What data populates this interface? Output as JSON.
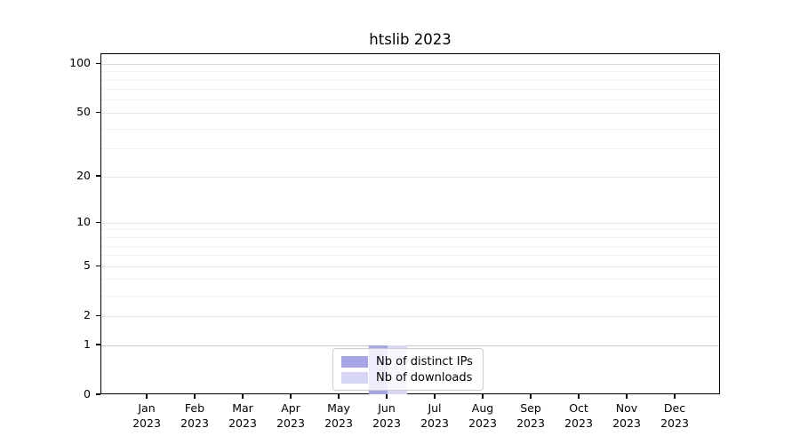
{
  "chart_data": {
    "type": "bar",
    "title": "htslib 2023",
    "categories": [
      "Jan 2023",
      "Feb 2023",
      "Mar 2023",
      "Apr 2023",
      "May 2023",
      "Jun 2023",
      "Jul 2023",
      "Aug 2023",
      "Sep 2023",
      "Oct 2023",
      "Nov 2023",
      "Dec 2023"
    ],
    "series": [
      {
        "name": "Nb of distinct IPs",
        "color": "#a5a5e8",
        "values": [
          0,
          0,
          0,
          0,
          0,
          1,
          0,
          0,
          0,
          0,
          0,
          0
        ]
      },
      {
        "name": "Nb of downloads",
        "color": "#d7d7f5",
        "values": [
          0,
          0,
          0,
          0,
          0,
          1,
          0,
          0,
          0,
          0,
          0,
          0
        ]
      }
    ],
    "xlabel": "",
    "ylabel": "",
    "yticks": [
      0,
      1,
      2,
      5,
      10,
      20,
      50,
      100
    ],
    "minor_yticks": [
      3,
      4,
      6,
      7,
      8,
      9,
      30,
      40,
      60,
      70,
      80,
      90
    ],
    "ylim": [
      0,
      115
    ],
    "yscale": "log1p",
    "grid": "horizontal",
    "legend_position": "lower center",
    "colors": {
      "gridline_minor": "#f2f2f2",
      "gridline_major": "#e6e6e6",
      "gridline_at_one": "#c9c9c9",
      "gridline_at_hundred": "#d9d9d9",
      "axis": "#000000",
      "legend_border": "#cccccc"
    }
  }
}
